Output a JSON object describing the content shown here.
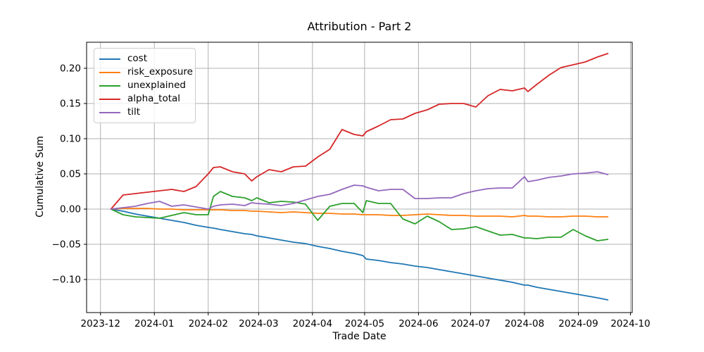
{
  "figure": {
    "title": "Attribution - Part 2",
    "xlabel": "Trade Date",
    "ylabel": "Cumulative Sum"
  },
  "legend": {
    "position": "upper-left",
    "entries": [
      {
        "key": "cost",
        "label": "cost",
        "color": "#1f77b4"
      },
      {
        "key": "risk_exposure",
        "label": "risk_exposure",
        "color": "#ff7f0e"
      },
      {
        "key": "unexplained",
        "label": "unexplained",
        "color": "#2ca02c"
      },
      {
        "key": "alpha_total",
        "label": "alpha_total",
        "color": "#d62728"
      },
      {
        "key": "tilt",
        "label": "tilt",
        "color": "#9467bd"
      }
    ]
  },
  "axes": {
    "grid": true,
    "grid_color": "#b0b0b0",
    "spine_color": "#000000",
    "xlim": [
      "2023-11-23",
      "2024-10-02"
    ],
    "ylim": [
      -0.147,
      0.237
    ],
    "x_ticks": [
      {
        "label": "2023-12",
        "date": "2023-12-01"
      },
      {
        "label": "2024-01",
        "date": "2024-01-01"
      },
      {
        "label": "2024-02",
        "date": "2024-02-01"
      },
      {
        "label": "2024-03",
        "date": "2024-03-01"
      },
      {
        "label": "2024-04",
        "date": "2024-04-01"
      },
      {
        "label": "2024-05",
        "date": "2024-05-01"
      },
      {
        "label": "2024-06",
        "date": "2024-06-01"
      },
      {
        "label": "2024-07",
        "date": "2024-07-01"
      },
      {
        "label": "2024-08",
        "date": "2024-08-01"
      },
      {
        "label": "2024-09",
        "date": "2024-09-01"
      },
      {
        "label": "2024-10",
        "date": "2024-10-01"
      }
    ],
    "y_ticks": [
      {
        "label": "0.20",
        "value": 0.2
      },
      {
        "label": "0.15",
        "value": 0.15
      },
      {
        "label": "0.10",
        "value": 0.1
      },
      {
        "label": "0.05",
        "value": 0.05
      },
      {
        "label": "0.00",
        "value": 0.0
      },
      {
        "label": "−0.05",
        "value": -0.05
      },
      {
        "label": "−0.10",
        "value": -0.1
      }
    ]
  },
  "chart_data": {
    "type": "line",
    "title": "Attribution - Part 2",
    "xlabel": "Trade Date",
    "ylabel": "Cumulative Sum",
    "grid": true,
    "legend_position": "upper left",
    "xlim": [
      "2023-11-23",
      "2024-10-02"
    ],
    "ylim": [
      -0.147,
      0.237
    ],
    "x_dates": [
      "2023-12-07",
      "2023-12-14",
      "2023-12-21",
      "2023-12-28",
      "2024-01-04",
      "2024-01-11",
      "2024-01-18",
      "2024-01-25",
      "2024-02-01",
      "2024-02-04",
      "2024-02-08",
      "2024-02-15",
      "2024-02-22",
      "2024-02-26",
      "2024-02-29",
      "2024-03-07",
      "2024-03-14",
      "2024-03-21",
      "2024-03-28",
      "2024-04-04",
      "2024-04-11",
      "2024-04-18",
      "2024-04-25",
      "2024-04-30",
      "2024-05-02",
      "2024-05-09",
      "2024-05-16",
      "2024-05-23",
      "2024-05-30",
      "2024-06-06",
      "2024-06-13",
      "2024-06-20",
      "2024-06-27",
      "2024-07-04",
      "2024-07-11",
      "2024-07-18",
      "2024-07-25",
      "2024-08-01",
      "2024-08-03",
      "2024-08-08",
      "2024-08-15",
      "2024-08-22",
      "2024-08-29",
      "2024-09-05",
      "2024-09-12",
      "2024-09-18"
    ],
    "series": [
      {
        "name": "cost",
        "color": "#1f77b4",
        "values": [
          0.0,
          -0.003,
          -0.007,
          -0.01,
          -0.013,
          -0.016,
          -0.019,
          -0.023,
          -0.026,
          -0.027,
          -0.029,
          -0.032,
          -0.035,
          -0.036,
          -0.038,
          -0.041,
          -0.044,
          -0.047,
          -0.049,
          -0.053,
          -0.056,
          -0.06,
          -0.063,
          -0.066,
          -0.071,
          -0.073,
          -0.076,
          -0.078,
          -0.081,
          -0.083,
          -0.086,
          -0.089,
          -0.092,
          -0.095,
          -0.098,
          -0.101,
          -0.104,
          -0.108,
          -0.108,
          -0.111,
          -0.114,
          -0.117,
          -0.12,
          -0.123,
          -0.126,
          -0.129
        ]
      },
      {
        "name": "risk_exposure",
        "color": "#ff7f0e",
        "values": [
          0.0,
          0.001,
          0.001,
          0.001,
          0.0,
          0.0,
          -0.001,
          -0.001,
          -0.001,
          -0.001,
          -0.001,
          -0.002,
          -0.002,
          -0.003,
          -0.003,
          -0.004,
          -0.005,
          -0.004,
          -0.005,
          -0.006,
          -0.006,
          -0.007,
          -0.007,
          -0.008,
          -0.008,
          -0.008,
          -0.009,
          -0.009,
          -0.008,
          -0.007,
          -0.008,
          -0.009,
          -0.009,
          -0.01,
          -0.01,
          -0.01,
          -0.011,
          -0.009,
          -0.01,
          -0.01,
          -0.011,
          -0.011,
          -0.01,
          -0.01,
          -0.011,
          -0.011
        ]
      },
      {
        "name": "unexplained",
        "color": "#2ca02c",
        "values": [
          0.0,
          -0.008,
          -0.011,
          -0.012,
          -0.013,
          -0.009,
          -0.005,
          -0.008,
          -0.008,
          0.018,
          0.025,
          0.018,
          0.016,
          0.012,
          0.016,
          0.009,
          0.011,
          0.01,
          0.007,
          -0.016,
          0.004,
          0.008,
          0.008,
          -0.005,
          0.012,
          0.008,
          0.008,
          -0.014,
          -0.021,
          -0.01,
          -0.018,
          -0.029,
          -0.028,
          -0.025,
          -0.031,
          -0.037,
          -0.036,
          -0.041,
          -0.041,
          -0.042,
          -0.04,
          -0.04,
          -0.029,
          -0.038,
          -0.045,
          -0.043
        ]
      },
      {
        "name": "alpha_total",
        "color": "#d62728",
        "values": [
          0.0,
          0.02,
          0.022,
          0.024,
          0.026,
          0.028,
          0.025,
          0.032,
          0.05,
          0.059,
          0.06,
          0.053,
          0.05,
          0.04,
          0.046,
          0.056,
          0.053,
          0.06,
          0.061,
          0.074,
          0.085,
          0.113,
          0.106,
          0.104,
          0.11,
          0.118,
          0.127,
          0.128,
          0.136,
          0.141,
          0.149,
          0.15,
          0.15,
          0.145,
          0.161,
          0.17,
          0.168,
          0.172,
          0.167,
          0.177,
          0.19,
          0.201,
          0.205,
          0.209,
          0.216,
          0.221
        ]
      },
      {
        "name": "tilt",
        "color": "#9467bd",
        "values": [
          0.0,
          0.002,
          0.004,
          0.008,
          0.011,
          0.004,
          0.006,
          0.003,
          0.0,
          0.004,
          0.006,
          0.007,
          0.005,
          0.009,
          0.008,
          0.007,
          0.005,
          0.008,
          0.013,
          0.018,
          0.021,
          0.028,
          0.034,
          0.033,
          0.031,
          0.026,
          0.028,
          0.028,
          0.015,
          0.015,
          0.016,
          0.016,
          0.022,
          0.026,
          0.029,
          0.03,
          0.03,
          0.046,
          0.039,
          0.041,
          0.045,
          0.047,
          0.05,
          0.051,
          0.053,
          0.049
        ]
      }
    ]
  }
}
